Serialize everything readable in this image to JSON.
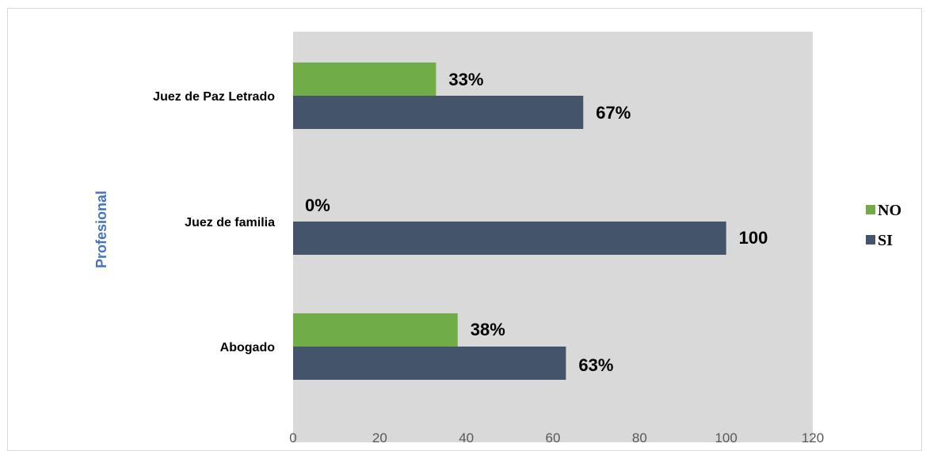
{
  "chart_data": {
    "type": "bar",
    "orientation": "horizontal",
    "categories": [
      "Juez de Paz Letrado",
      "Juez de familia",
      "Abogado"
    ],
    "series": [
      {
        "name": "NO",
        "values": [
          33,
          0,
          38
        ],
        "labels": [
          "33%",
          "0%",
          "38%"
        ],
        "color": "#70ad47"
      },
      {
        "name": "SI",
        "values": [
          67,
          100,
          63
        ],
        "labels": [
          "67%",
          "100",
          "63%"
        ],
        "color": "#44546a"
      }
    ],
    "ylabel": "Profesional",
    "xlim": [
      0,
      120
    ],
    "x_ticks": [
      "0",
      "20",
      "40",
      "60",
      "80",
      "100",
      "120"
    ],
    "plot_background": "#d9d9d9",
    "axis_title_color": "#4472c4",
    "grid": false,
    "legend_position": "right"
  }
}
